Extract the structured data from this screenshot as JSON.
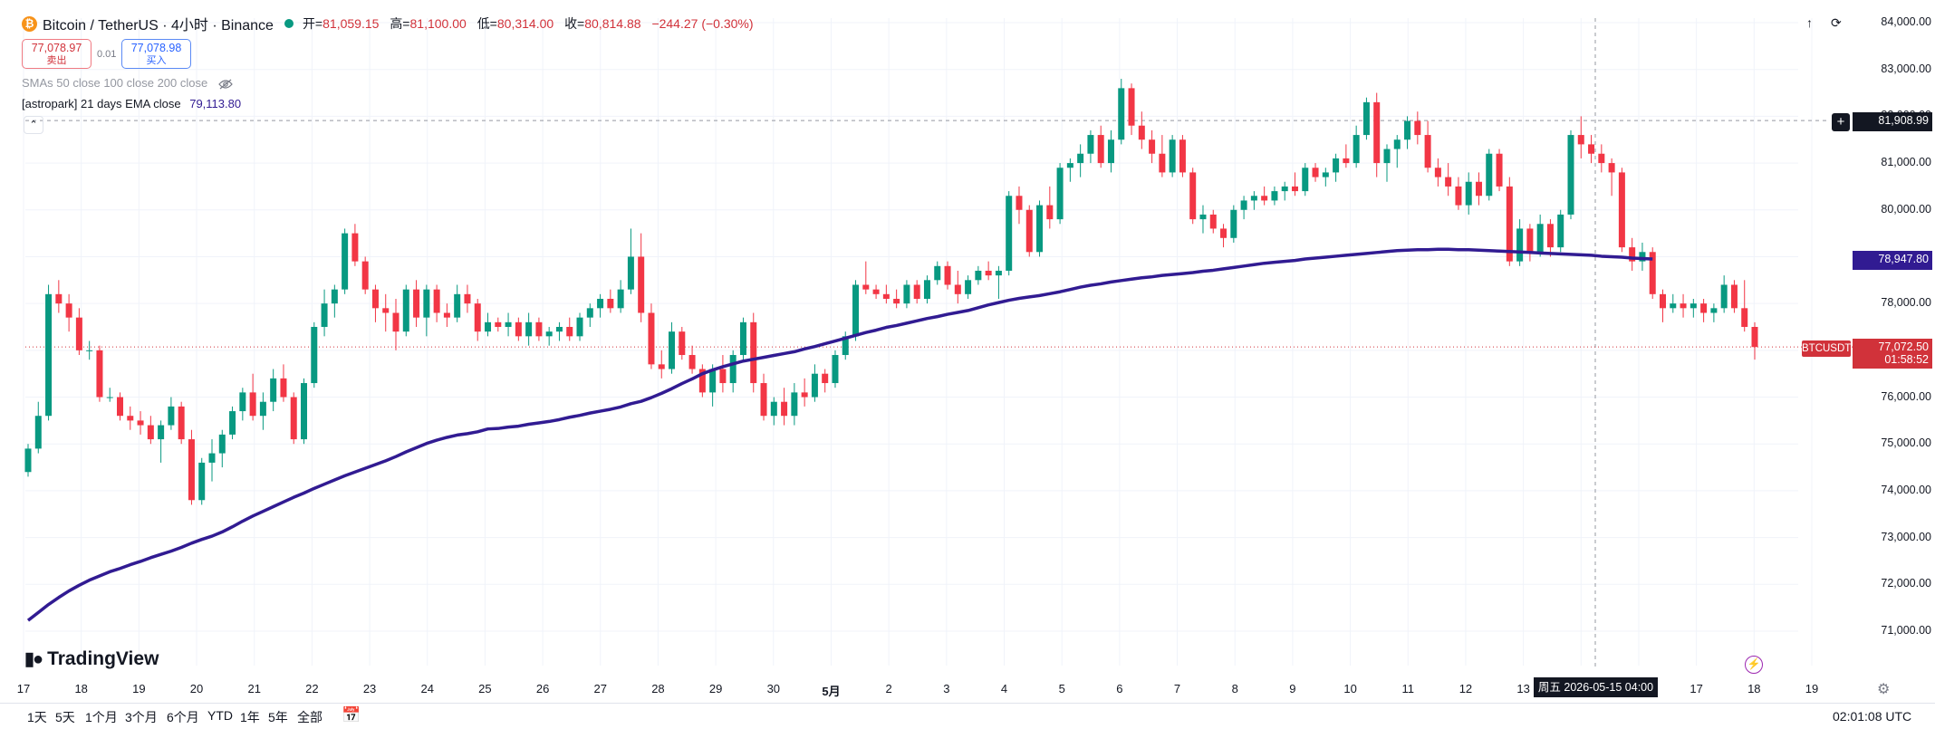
{
  "header": {
    "coin_icon_glyph": "₿",
    "title": "Bitcoin / TetherUS · 4小时 · Binance",
    "ohlc": [
      {
        "label": "开=",
        "value": "81,059.15"
      },
      {
        "label": "高=",
        "value": "81,100.00"
      },
      {
        "label": "低=",
        "value": "80,314.00"
      },
      {
        "label": "收=",
        "value": "80,814.88"
      }
    ],
    "change": "−244.27 (−0.30%)"
  },
  "trade": {
    "sell_price": "77,078.97",
    "sell_label": "卖出",
    "spread": "0.01",
    "buy_price": "77,078.98",
    "buy_label": "买入"
  },
  "indicators": {
    "sma": "SMAs 50 close 100 close 200 close",
    "ema_name": "[astropark] 21 days EMA close",
    "ema_value": "79,113.80"
  },
  "price_axis": {
    "labels": [
      "84,000.00",
      "83,000.00",
      "82,000.00",
      "81,000.00",
      "80,000.00",
      "79,000.00",
      "78,000.00",
      "77,000.00",
      "76,000.00",
      "75,000.00",
      "74,000.00",
      "73,000.00",
      "72,000.00",
      "71,000.00"
    ],
    "crosshair_price": "81,908.99",
    "ema_marker": "78,947.80",
    "symbol_tag": "BTCUSDT",
    "last_price": "77,072.50",
    "countdown": "01:58:52"
  },
  "time_axis": {
    "labels": [
      {
        "t": "17",
        "bold": false
      },
      {
        "t": "18",
        "bold": false
      },
      {
        "t": "19",
        "bold": false
      },
      {
        "t": "20",
        "bold": false
      },
      {
        "t": "21",
        "bold": false
      },
      {
        "t": "22",
        "bold": false
      },
      {
        "t": "23",
        "bold": false
      },
      {
        "t": "24",
        "bold": false
      },
      {
        "t": "25",
        "bold": false
      },
      {
        "t": "26",
        "bold": false
      },
      {
        "t": "27",
        "bold": false
      },
      {
        "t": "28",
        "bold": false
      },
      {
        "t": "29",
        "bold": false
      },
      {
        "t": "30",
        "bold": false
      },
      {
        "t": "5月",
        "bold": true
      },
      {
        "t": "2",
        "bold": false
      },
      {
        "t": "3",
        "bold": false
      },
      {
        "t": "4",
        "bold": false
      },
      {
        "t": "5",
        "bold": false
      },
      {
        "t": "6",
        "bold": false
      },
      {
        "t": "7",
        "bold": false
      },
      {
        "t": "8",
        "bold": false
      },
      {
        "t": "9",
        "bold": false
      },
      {
        "t": "10",
        "bold": false
      },
      {
        "t": "11",
        "bold": false
      },
      {
        "t": "12",
        "bold": false
      },
      {
        "t": "13",
        "bold": false
      },
      {
        "t": "14",
        "bold": false
      },
      {
        "t": "16",
        "bold": false
      },
      {
        "t": "17",
        "bold": false
      },
      {
        "t": "18",
        "bold": false
      },
      {
        "t": "19",
        "bold": false
      }
    ],
    "crosshair_time": "周五 2026-05-15   04:00"
  },
  "logo_text": "TradingView",
  "ranges": [
    "1天",
    "5天",
    "1个月",
    "3个月",
    "6个月",
    "YTD",
    "1年",
    "5年",
    "全部"
  ],
  "clock": "02:01:08 UTC",
  "icons": {
    "top_right": [
      "arrow-up-icon",
      "fullscreen-icon"
    ],
    "compare": "compare-calendar-icon",
    "bolt": "lightning-icon",
    "settings": "gear-icon",
    "eye": "eye-icon",
    "collapse": "chevron-up-icon"
  },
  "colors": {
    "up": "#089981",
    "down": "#f23645",
    "ema": "#311b92",
    "accent_red": "#d1323a",
    "accent_blue": "#2962ff"
  },
  "chart_data": {
    "type": "candlestick",
    "interval": "4小时",
    "symbol": "BTCUSDT",
    "ylim": [
      70500,
      84000
    ],
    "candles": [
      [
        74400,
        75000,
        74300,
        74900
      ],
      [
        74900,
        75900,
        74800,
        75600
      ],
      [
        75600,
        78400,
        75500,
        78200
      ],
      [
        78200,
        78500,
        77800,
        78000
      ],
      [
        78000,
        78200,
        77400,
        77700
      ],
      [
        77700,
        77900,
        76900,
        77000
      ],
      [
        77000,
        77200,
        76800,
        77000
      ],
      [
        77000,
        77100,
        75900,
        76000
      ],
      [
        76000,
        76200,
        75900,
        76000
      ],
      [
        76000,
        76100,
        75500,
        75600
      ],
      [
        75600,
        75800,
        75300,
        75500
      ],
      [
        75500,
        75700,
        75200,
        75400
      ],
      [
        75400,
        75600,
        75000,
        75100
      ],
      [
        75100,
        75500,
        74600,
        75400
      ],
      [
        75400,
        76000,
        75300,
        75800
      ],
      [
        75800,
        75900,
        75000,
        75100
      ],
      [
        75100,
        75300,
        73700,
        73800
      ],
      [
        73800,
        74700,
        73700,
        74600
      ],
      [
        74600,
        75100,
        74200,
        74800
      ],
      [
        74800,
        75300,
        74500,
        75200
      ],
      [
        75200,
        75800,
        75100,
        75700
      ],
      [
        75700,
        76200,
        75500,
        76100
      ],
      [
        76100,
        76500,
        75500,
        75600
      ],
      [
        75600,
        76100,
        75300,
        75900
      ],
      [
        75900,
        76600,
        75700,
        76400
      ],
      [
        76400,
        76700,
        75900,
        76000
      ],
      [
        76000,
        76100,
        75000,
        75100
      ],
      [
        75100,
        76400,
        75000,
        76300
      ],
      [
        76300,
        77600,
        76200,
        77500
      ],
      [
        77500,
        78300,
        77300,
        78000
      ],
      [
        78000,
        78400,
        77700,
        78300
      ],
      [
        78300,
        79600,
        78200,
        79500
      ],
      [
        79500,
        79700,
        78800,
        78900
      ],
      [
        78900,
        79000,
        78200,
        78300
      ],
      [
        78300,
        78400,
        77600,
        77900
      ],
      [
        77900,
        78200,
        77400,
        77800
      ],
      [
        77800,
        78100,
        77000,
        77400
      ],
      [
        77400,
        78400,
        77300,
        78300
      ],
      [
        78300,
        78500,
        77500,
        77700
      ],
      [
        77700,
        78400,
        77300,
        78300
      ],
      [
        78300,
        78400,
        77600,
        77800
      ],
      [
        77800,
        78000,
        77500,
        77700
      ],
      [
        77700,
        78400,
        77600,
        78200
      ],
      [
        78200,
        78400,
        77800,
        78000
      ],
      [
        78000,
        78100,
        77200,
        77400
      ],
      [
        77400,
        77800,
        77300,
        77600
      ],
      [
        77600,
        77700,
        77400,
        77500
      ],
      [
        77500,
        77800,
        77300,
        77600
      ],
      [
        77600,
        77700,
        77200,
        77300
      ],
      [
        77300,
        77800,
        77100,
        77600
      ],
      [
        77600,
        77700,
        77200,
        77300
      ],
      [
        77300,
        77500,
        77100,
        77400
      ],
      [
        77400,
        77600,
        77200,
        77500
      ],
      [
        77500,
        77700,
        77200,
        77300
      ],
      [
        77300,
        77800,
        77200,
        77700
      ],
      [
        77700,
        78000,
        77500,
        77900
      ],
      [
        77900,
        78200,
        77700,
        78100
      ],
      [
        78100,
        78300,
        77800,
        77900
      ],
      [
        77900,
        78500,
        77800,
        78300
      ],
      [
        78300,
        79600,
        78200,
        79000
      ],
      [
        79000,
        79500,
        77600,
        77800
      ],
      [
        77800,
        78000,
        76600,
        76700
      ],
      [
        76700,
        77000,
        76400,
        76600
      ],
      [
        76600,
        77600,
        76500,
        77400
      ],
      [
        77400,
        77500,
        76800,
        76900
      ],
      [
        76900,
        77100,
        76500,
        76600
      ],
      [
        76600,
        76700,
        76000,
        76100
      ],
      [
        76100,
        76700,
        75800,
        76600
      ],
      [
        76600,
        76900,
        76100,
        76300
      ],
      [
        76300,
        77000,
        76100,
        76900
      ],
      [
        76900,
        77700,
        76800,
        77600
      ],
      [
        77600,
        77800,
        76100,
        76300
      ],
      [
        76300,
        76500,
        75500,
        75600
      ],
      [
        75600,
        76000,
        75400,
        75900
      ],
      [
        75900,
        76200,
        75400,
        75600
      ],
      [
        75600,
        76300,
        75400,
        76100
      ],
      [
        76100,
        76400,
        75800,
        76000
      ],
      [
        76000,
        76700,
        75900,
        76500
      ],
      [
        76500,
        76600,
        76100,
        76300
      ],
      [
        76300,
        77000,
        76200,
        76900
      ],
      [
        76900,
        77400,
        76800,
        77300
      ],
      [
        77300,
        78500,
        77200,
        78400
      ],
      [
        78400,
        78900,
        78200,
        78300
      ],
      [
        78300,
        78400,
        78100,
        78200
      ],
      [
        78200,
        78400,
        78000,
        78100
      ],
      [
        78100,
        78300,
        77900,
        78000
      ],
      [
        78000,
        78500,
        77900,
        78400
      ],
      [
        78400,
        78500,
        78000,
        78100
      ],
      [
        78100,
        78600,
        78000,
        78500
      ],
      [
        78500,
        78900,
        78400,
        78800
      ],
      [
        78800,
        78900,
        78300,
        78400
      ],
      [
        78400,
        78700,
        78000,
        78200
      ],
      [
        78200,
        78600,
        78100,
        78500
      ],
      [
        78500,
        78800,
        78400,
        78700
      ],
      [
        78700,
        78900,
        78500,
        78600
      ],
      [
        78600,
        78800,
        78100,
        78700
      ],
      [
        78700,
        80400,
        78600,
        80300
      ],
      [
        80300,
        80500,
        79700,
        80000
      ],
      [
        80000,
        80100,
        79000,
        79100
      ],
      [
        79100,
        80200,
        79000,
        80100
      ],
      [
        80100,
        80500,
        79600,
        79800
      ],
      [
        79800,
        81000,
        79700,
        80900
      ],
      [
        80900,
        81100,
        80600,
        81000
      ],
      [
        81000,
        81400,
        80700,
        81200
      ],
      [
        81200,
        81700,
        81000,
        81600
      ],
      [
        81600,
        81800,
        80900,
        81000
      ],
      [
        81000,
        81700,
        80800,
        81500
      ],
      [
        81500,
        82800,
        81400,
        82600
      ],
      [
        82600,
        82700,
        81600,
        81800
      ],
      [
        81800,
        82100,
        81300,
        81500
      ],
      [
        81500,
        81700,
        81000,
        81200
      ],
      [
        81200,
        81600,
        80700,
        80800
      ],
      [
        80800,
        81600,
        80700,
        81500
      ],
      [
        81500,
        81600,
        80700,
        80800
      ],
      [
        80800,
        80900,
        79700,
        79800
      ],
      [
        79800,
        80100,
        79500,
        79900
      ],
      [
        79900,
        80000,
        79500,
        79600
      ],
      [
        79600,
        79700,
        79200,
        79400
      ],
      [
        79400,
        80100,
        79300,
        80000
      ],
      [
        80000,
        80300,
        79800,
        80200
      ],
      [
        80200,
        80400,
        80000,
        80300
      ],
      [
        80300,
        80500,
        80100,
        80200
      ],
      [
        80200,
        80500,
        80100,
        80400
      ],
      [
        80400,
        80600,
        80200,
        80500
      ],
      [
        80500,
        80800,
        80300,
        80400
      ],
      [
        80400,
        81000,
        80300,
        80900
      ],
      [
        80900,
        81000,
        80600,
        80700
      ],
      [
        80700,
        80900,
        80500,
        80800
      ],
      [
        80800,
        81200,
        80600,
        81100
      ],
      [
        81100,
        81400,
        80900,
        81000
      ],
      [
        81000,
        81800,
        80900,
        81600
      ],
      [
        81600,
        82400,
        81500,
        82300
      ],
      [
        82300,
        82500,
        80700,
        81000
      ],
      [
        81000,
        81400,
        80600,
        81300
      ],
      [
        81300,
        81600,
        80900,
        81500
      ],
      [
        81500,
        82000,
        81300,
        81900
      ],
      [
        81900,
        82100,
        81400,
        81600
      ],
      [
        81600,
        81900,
        80800,
        80900
      ],
      [
        80900,
        81100,
        80500,
        80700
      ],
      [
        80700,
        81000,
        80300,
        80500
      ],
      [
        80500,
        80700,
        80000,
        80100
      ],
      [
        80100,
        80800,
        79900,
        80600
      ],
      [
        80600,
        80800,
        80100,
        80300
      ],
      [
        80300,
        81300,
        80200,
        81200
      ],
      [
        81200,
        81300,
        80400,
        80500
      ],
      [
        80500,
        80700,
        78800,
        78900
      ],
      [
        78900,
        79800,
        78800,
        79600
      ],
      [
        79600,
        79700,
        78900,
        79100
      ],
      [
        79100,
        79900,
        79000,
        79700
      ],
      [
        79700,
        79800,
        79000,
        79200
      ],
      [
        79200,
        80000,
        79100,
        79900
      ],
      [
        79900,
        81700,
        79800,
        81600
      ],
      [
        81600,
        82000,
        81100,
        81400
      ],
      [
        81400,
        81600,
        81000,
        81200
      ],
      [
        81200,
        81400,
        80800,
        81000
      ],
      [
        81000,
        81100,
        80300,
        80800
      ],
      [
        80800,
        80900,
        79100,
        79200
      ],
      [
        79200,
        79400,
        78700,
        78900
      ],
      [
        78900,
        79300,
        78700,
        79100
      ],
      [
        79100,
        79200,
        78100,
        78200
      ],
      [
        78200,
        78300,
        77600,
        77900
      ],
      [
        77900,
        78200,
        77800,
        78000
      ],
      [
        78000,
        78200,
        77700,
        77900
      ],
      [
        77900,
        78100,
        77700,
        78000
      ],
      [
        78000,
        78100,
        77600,
        77800
      ],
      [
        77800,
        78000,
        77600,
        77900
      ],
      [
        77900,
        78600,
        77800,
        78400
      ],
      [
        78400,
        78500,
        77800,
        77900
      ],
      [
        77900,
        78500,
        77400,
        77500
      ],
      [
        77500,
        77600,
        76800,
        77070
      ]
    ],
    "ema_series": [
      71230,
      71400,
      71570,
      71720,
      71860,
      71980,
      72090,
      72180,
      72270,
      72340,
      72420,
      72490,
      72570,
      72640,
      72710,
      72790,
      72880,
      72960,
      73030,
      73120,
      73230,
      73350,
      73460,
      73560,
      73660,
      73760,
      73860,
      73950,
      74050,
      74140,
      74230,
      74320,
      74400,
      74480,
      74560,
      74640,
      74730,
      74830,
      74920,
      75010,
      75080,
      75140,
      75190,
      75220,
      75260,
      75320,
      75330,
      75360,
      75380,
      75420,
      75450,
      75480,
      75520,
      75570,
      75610,
      75660,
      75700,
      75740,
      75790,
      75860,
      75910,
      75990,
      76080,
      76180,
      76290,
      76390,
      76500,
      76580,
      76650,
      76710,
      76770,
      76810,
      76850,
      76890,
      76930,
      76970,
      77030,
      77080,
      77140,
      77200,
      77260,
      77320,
      77380,
      77430,
      77490,
      77530,
      77580,
      77630,
      77680,
      77720,
      77770,
      77810,
      77850,
      77910,
      77970,
      78020,
      78070,
      78110,
      78140,
      78170,
      78210,
      78250,
      78300,
      78350,
      78390,
      78420,
      78460,
      78490,
      78520,
      78550,
      78570,
      78600,
      78620,
      78640,
      78660,
      78690,
      78710,
      78740,
      78770,
      78800,
      78830,
      78860,
      78880,
      78900,
      78920,
      78950,
      78970,
      78990,
      79010,
      79030,
      79050,
      79070,
      79090,
      79110,
      79130,
      79140,
      79150,
      79150,
      79160,
      79160,
      79150,
      79150,
      79140,
      79130,
      79120,
      79110,
      79100,
      79090,
      79080,
      79070,
      79060,
      79050,
      79040,
      79030,
      79010,
      79000,
      78990,
      78970,
      78960,
      78950
    ],
    "crosshair_price_value": 81908.99,
    "last_price_value": 77072.5,
    "grid": true
  }
}
